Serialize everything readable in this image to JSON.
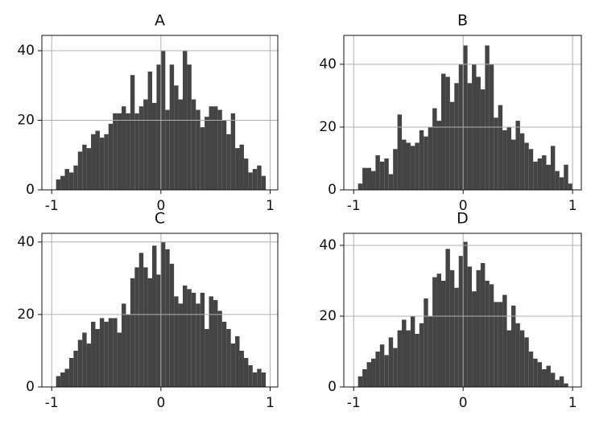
{
  "chart_data": [
    {
      "type": "histogram",
      "title": "A",
      "color": "#444444",
      "grid": true,
      "bins": [
        -1,
        -0.96,
        -0.92,
        -0.88,
        -0.84,
        -0.8,
        -0.76,
        -0.72,
        -0.68,
        -0.64,
        -0.6,
        -0.56,
        -0.52,
        -0.48,
        -0.44,
        -0.4,
        -0.36,
        -0.32,
        -0.28,
        -0.24,
        -0.2,
        -0.16,
        -0.12,
        -0.08,
        -0.04,
        0,
        0.04,
        0.08,
        0.12,
        0.16,
        0.2,
        0.24,
        0.28,
        0.32,
        0.36,
        0.4,
        0.44,
        0.48,
        0.52,
        0.56,
        0.6,
        0.64,
        0.68,
        0.72,
        0.76,
        0.8,
        0.84,
        0.88,
        0.92,
        0.96,
        1
      ],
      "values": [
        0,
        3,
        4,
        6,
        5,
        7,
        11,
        13,
        12,
        16,
        17,
        15,
        16,
        19,
        22,
        22,
        24,
        22,
        33,
        22,
        24,
        26,
        34,
        25,
        36,
        40,
        23,
        36,
        30,
        26,
        40,
        36,
        26,
        23,
        18,
        21,
        24,
        24,
        23,
        20,
        16,
        22,
        12,
        13,
        9,
        5,
        6,
        7,
        4,
        0
      ],
      "xlim": [
        -1.09,
        1.07
      ],
      "ylim": [
        0,
        44.4
      ],
      "xticks": [
        -1,
        0,
        1
      ],
      "yticks": [
        0,
        20,
        40
      ]
    },
    {
      "type": "histogram",
      "title": "B",
      "color": "#444444",
      "grid": true,
      "bins": [
        -1,
        -0.96,
        -0.92,
        -0.88,
        -0.84,
        -0.8,
        -0.76,
        -0.72,
        -0.68,
        -0.64,
        -0.6,
        -0.56,
        -0.52,
        -0.48,
        -0.44,
        -0.4,
        -0.36,
        -0.32,
        -0.28,
        -0.24,
        -0.2,
        -0.16,
        -0.12,
        -0.08,
        -0.04,
        0,
        0.04,
        0.08,
        0.12,
        0.16,
        0.2,
        0.24,
        0.28,
        0.32,
        0.36,
        0.4,
        0.44,
        0.48,
        0.52,
        0.56,
        0.6,
        0.64,
        0.68,
        0.72,
        0.76,
        0.8,
        0.84,
        0.88,
        0.92,
        0.96,
        1
      ],
      "values": [
        0,
        2,
        7,
        7,
        6,
        11,
        9,
        10,
        5,
        13,
        24,
        16,
        15,
        14,
        15,
        19,
        17,
        20,
        26,
        22,
        37,
        36,
        28,
        34,
        40,
        46,
        34,
        40,
        36,
        32,
        46,
        40,
        23,
        27,
        19,
        20,
        16,
        22,
        18,
        15,
        13,
        9,
        10,
        11,
        8,
        14,
        6,
        4,
        8,
        2
      ],
      "xlim": [
        -1.09,
        1.08
      ],
      "ylim": [
        0,
        49.2
      ],
      "xticks": [
        -1,
        0,
        1
      ],
      "yticks": [
        0,
        20,
        40
      ]
    },
    {
      "type": "histogram",
      "title": "C",
      "color": "#444444",
      "grid": true,
      "bins": [
        -1,
        -0.96,
        -0.92,
        -0.88,
        -0.84,
        -0.8,
        -0.76,
        -0.72,
        -0.68,
        -0.64,
        -0.6,
        -0.56,
        -0.52,
        -0.48,
        -0.44,
        -0.4,
        -0.36,
        -0.32,
        -0.28,
        -0.24,
        -0.2,
        -0.16,
        -0.12,
        -0.08,
        -0.04,
        0,
        0.04,
        0.08,
        0.12,
        0.16,
        0.2,
        0.24,
        0.28,
        0.32,
        0.36,
        0.4,
        0.44,
        0.48,
        0.52,
        0.56,
        0.6,
        0.64,
        0.68,
        0.72,
        0.76,
        0.8,
        0.84,
        0.88,
        0.92,
        0.96,
        1
      ],
      "values": [
        0,
        3,
        4,
        5,
        8,
        10,
        13,
        15,
        12,
        18,
        16,
        19,
        18,
        19,
        19,
        15,
        23,
        20,
        30,
        33,
        37,
        33,
        30,
        39,
        31,
        40,
        38,
        34,
        25,
        23,
        28,
        27,
        26,
        23,
        26,
        16,
        25,
        24,
        21,
        18,
        16,
        12,
        14,
        10,
        8,
        6,
        4,
        5,
        4,
        0
      ],
      "xlim": [
        -1.09,
        1.07
      ],
      "ylim": [
        0,
        42.4
      ],
      "xticks": [
        -1,
        0,
        1
      ],
      "yticks": [
        0,
        20,
        40
      ]
    },
    {
      "type": "histogram",
      "title": "D",
      "color": "#444444",
      "grid": true,
      "bins": [
        -1,
        -0.96,
        -0.92,
        -0.88,
        -0.84,
        -0.8,
        -0.76,
        -0.72,
        -0.68,
        -0.64,
        -0.6,
        -0.56,
        -0.52,
        -0.48,
        -0.44,
        -0.4,
        -0.36,
        -0.32,
        -0.28,
        -0.24,
        -0.2,
        -0.16,
        -0.12,
        -0.08,
        -0.04,
        0,
        0.04,
        0.08,
        0.12,
        0.16,
        0.2,
        0.24,
        0.28,
        0.32,
        0.36,
        0.4,
        0.44,
        0.48,
        0.52,
        0.56,
        0.6,
        0.64,
        0.68,
        0.72,
        0.76,
        0.8,
        0.84,
        0.88,
        0.92,
        0.96,
        1
      ],
      "values": [
        0,
        3,
        5,
        7,
        8,
        10,
        12,
        9,
        14,
        11,
        16,
        19,
        16,
        20,
        15,
        18,
        25,
        20,
        31,
        32,
        30,
        39,
        33,
        28,
        37,
        41,
        34,
        27,
        33,
        35,
        30,
        29,
        24,
        24,
        26,
        16,
        23,
        18,
        16,
        14,
        10,
        8,
        7,
        5,
        6,
        4,
        2,
        3,
        1,
        0
      ],
      "xlim": [
        -1.09,
        1.08
      ],
      "ylim": [
        0,
        43.4
      ],
      "xticks": [
        -1,
        0,
        1
      ],
      "yticks": [
        0,
        20,
        40
      ]
    }
  ]
}
